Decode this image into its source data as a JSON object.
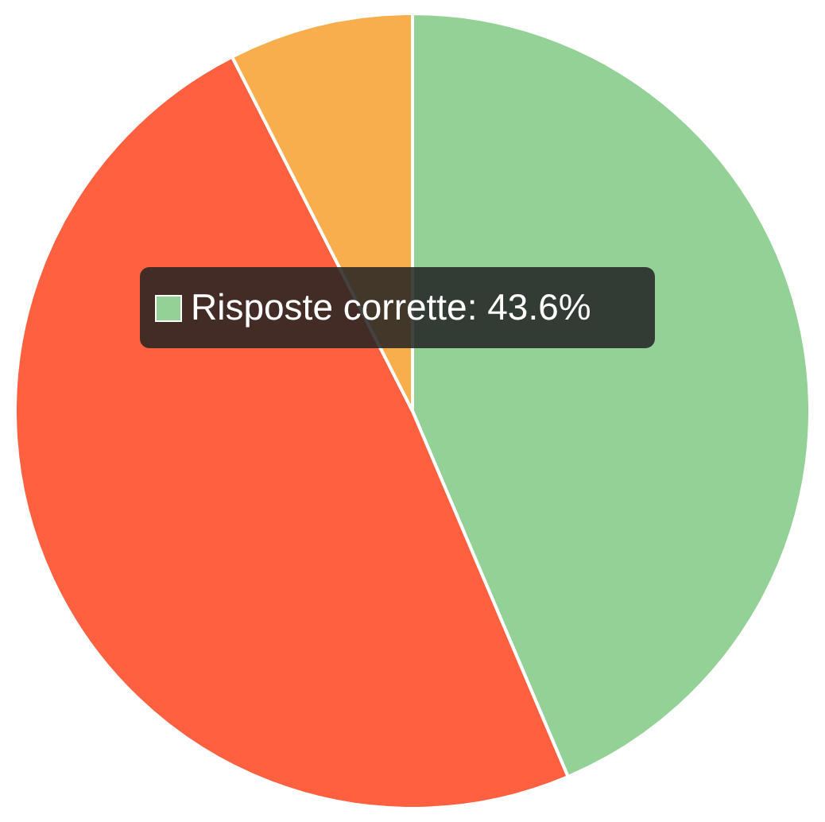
{
  "chart_data": {
    "type": "pie",
    "categories": [
      "Risposte corrette",
      null,
      null
    ],
    "values": [
      43.6,
      48.9,
      7.5
    ],
    "colors": [
      "#93d197",
      "#ff6140",
      "#f8ae4c"
    ],
    "value_labels": [
      "43.6%",
      null,
      null
    ],
    "legend": "top left"
  }
}
